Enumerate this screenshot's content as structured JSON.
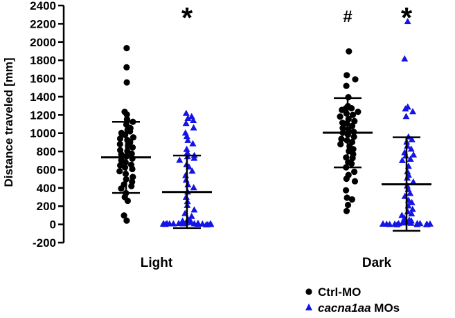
{
  "chart_data": {
    "type": "scatter",
    "title": "",
    "xlabel": "",
    "ylabel": "Distance traveled [mm]",
    "ylim": [
      -200,
      2400
    ],
    "yticks": [
      -200,
      0,
      200,
      400,
      600,
      800,
      1000,
      1200,
      1400,
      1600,
      1800,
      2000,
      2200,
      2400
    ],
    "categories": [
      "Light",
      "Dark"
    ],
    "grid": false,
    "legend_position": "bottom-right",
    "series": [
      {
        "name": "Ctrl-MO",
        "italic_part": "",
        "plain_part": "Ctrl-MO",
        "marker": "circle",
        "color": "#000000",
        "groups": [
          {
            "category": "Light",
            "mean": 735,
            "sd_low": 345,
            "sd_high": 1125,
            "values": [
              1930,
              1730,
              1560,
              1240,
              1210,
              1150,
              1120,
              1090,
              1060,
              1040,
              1020,
              1000,
              980,
              960,
              940,
              920,
              900,
              880,
              860,
              840,
              820,
              800,
              780,
              760,
              740,
              720,
              700,
              680,
              660,
              640,
              620,
              600,
              580,
              550,
              520,
              500,
              470,
              440,
              420,
              390,
              350,
              300,
              260,
              100,
              40
            ]
          },
          {
            "category": "Dark",
            "mean": 1005,
            "sd_low": 625,
            "sd_high": 1385,
            "values": [
              1900,
              1640,
              1590,
              1520,
              1400,
              1300,
              1280,
              1270,
              1260,
              1240,
              1220,
              1200,
              1180,
              1160,
              1140,
              1120,
              1100,
              1080,
              1060,
              1040,
              1020,
              1000,
              980,
              960,
              940,
              920,
              900,
              880,
              860,
              830,
              800,
              770,
              740,
              720,
              680,
              660,
              620,
              580,
              540,
              500,
              470,
              380,
              300,
              270,
              220,
              150
            ]
          }
        ]
      },
      {
        "name": "cacna1aa MOs",
        "italic_part": "cacna1aa",
        "plain_part": " MOs",
        "marker": "triangle",
        "color": "#1414e6",
        "groups": [
          {
            "category": "Light",
            "mean": 355,
            "sd_low": -40,
            "sd_high": 755,
            "values": [
              1220,
              1180,
              1160,
              1140,
              1100,
              1050,
              1000,
              960,
              920,
              880,
              820,
              780,
              760,
              740,
              720,
              700,
              660,
              620,
              580,
              540,
              490,
              440,
              400,
              360,
              300,
              250,
              200,
              160,
              120,
              90,
              60,
              40,
              30,
              20,
              15,
              10,
              8,
              5,
              5,
              4,
              3,
              2,
              2,
              1,
              0,
              0,
              0,
              0,
              0,
              0,
              0,
              0,
              0
            ]
          },
          {
            "category": "Dark",
            "mean": 440,
            "sd_low": -70,
            "sd_high": 955,
            "values": [
              2220,
              1820,
              1290,
              1260,
              1240,
              1180,
              960,
              930,
              900,
              860,
              820,
              780,
              760,
              740,
              720,
              700,
              640,
              580,
              540,
              500,
              460,
              420,
              380,
              340,
              300,
              260,
              230,
              200,
              170,
              140,
              110,
              90,
              70,
              50,
              40,
              30,
              20,
              15,
              10,
              5,
              3,
              2,
              1,
              0,
              0,
              0,
              0,
              0,
              0,
              0,
              0,
              0,
              0
            ]
          }
        ]
      }
    ],
    "annotations": [
      {
        "text": "*",
        "series": "cacna1aa MOs",
        "category": "Light"
      },
      {
        "text": "#",
        "series": "Ctrl-MO",
        "category": "Dark"
      },
      {
        "text": "*",
        "series": "cacna1aa MOs",
        "category": "Dark"
      }
    ]
  }
}
